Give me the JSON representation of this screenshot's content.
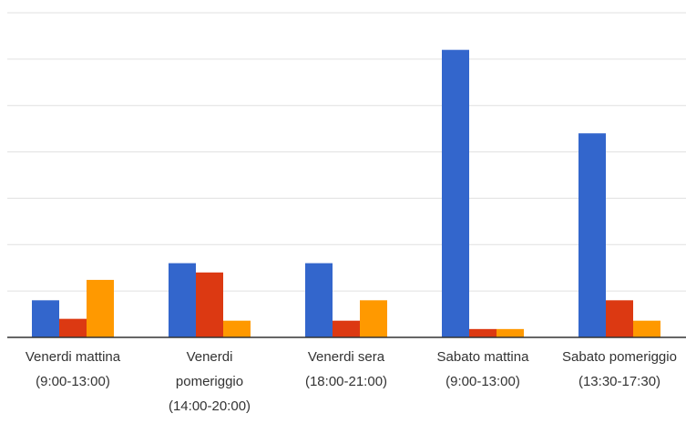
{
  "chart_data": {
    "type": "bar",
    "categories": [
      [
        "Venerdi mattina",
        "(9:00-13:00)"
      ],
      [
        "Venerdi",
        "pomeriggio",
        "(14:00-20:00)"
      ],
      [
        "Venerdi sera",
        "(18:00-21:00)"
      ],
      [
        "Sabato mattina",
        "(9:00-13:00)"
      ],
      [
        "Sabato pomeriggio",
        "(13:30-17:30)"
      ]
    ],
    "series": [
      {
        "values": [
          4,
          8,
          8,
          31,
          22
        ]
      },
      {
        "values": [
          2,
          7,
          1.8,
          0.9,
          4
        ]
      },
      {
        "values": [
          6.2,
          1.8,
          4,
          0.9,
          1.8
        ]
      }
    ],
    "ylim": [
      0,
      35
    ],
    "grid": true,
    "legend": "none",
    "colors": [
      "#3366cc",
      "#dc3912",
      "#ff9900"
    ]
  }
}
